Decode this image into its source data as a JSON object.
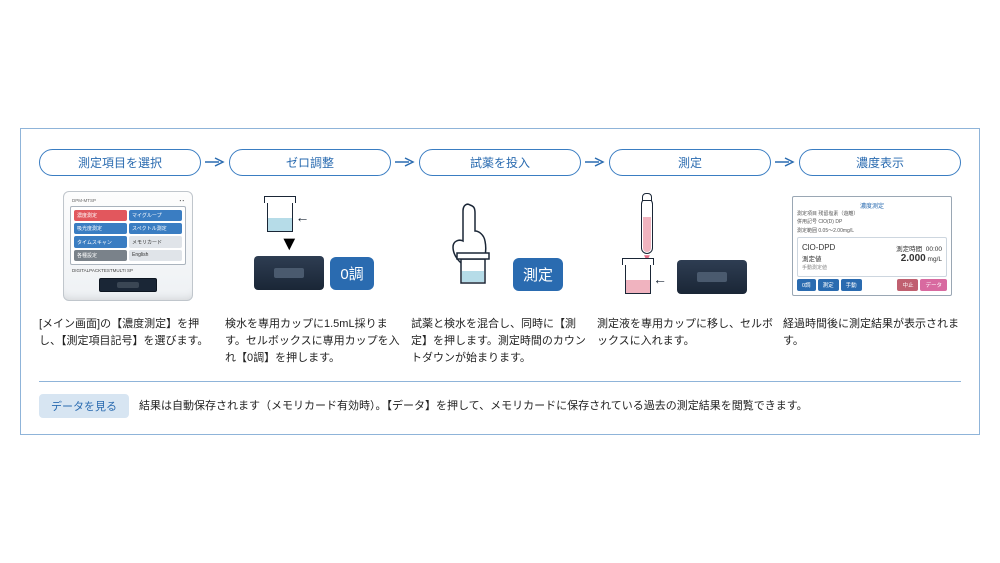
{
  "colors": {
    "border": "#8fb4d9",
    "primary": "#2a6bb0",
    "primary_border": "#3a7dc2",
    "text": "#222222",
    "badge_bg": "#d7e5f2",
    "water_blue": "#b6dce8",
    "water_pink": "#f0b3bf",
    "sensor_dark": "#1a2636"
  },
  "steps": {
    "s1": {
      "label": "測定項目を選択",
      "desc": "[メイン画面]の【濃度測定】を押し、【測定項目記号】を選びます。"
    },
    "s2": {
      "label": "ゼロ調整",
      "desc": "検水を専用カップに1.5mL採ります。セルボックスに専用カップを入れ【0調】を押します。"
    },
    "s3": {
      "label": "試薬を投入",
      "desc": "試薬と検水を混合し、同時に【測定】を押します。測定時間のカウントダウンが始まります。"
    },
    "s4": {
      "label": "測定",
      "desc": "測定液を専用カップに移し、セルボックスに入れます。"
    },
    "s5": {
      "label": "濃度表示",
      "desc": "経過時間後に測定結果が表示されます。"
    }
  },
  "device": {
    "brand": "DPM-MTSP",
    "subtitle": "DIGITALPACKTESTMULTI SP",
    "menu": [
      {
        "label": "濃度測定",
        "color": "#e2575d"
      },
      {
        "label": "マイグループ",
        "color": "#3a7dc2"
      },
      {
        "label": "吸光度測定",
        "color": "#3a7dc2"
      },
      {
        "label": "スペクトル測定",
        "color": "#3a7dc2"
      },
      {
        "label": "タイムスキャン",
        "color": "#3a7dc2"
      },
      {
        "label": "メモリカード",
        "color": "#e0e4e9",
        "text": "#333"
      },
      {
        "label": "各種設定",
        "color": "#7a828a"
      },
      {
        "label": "English",
        "color": "#e0e4e9",
        "text": "#333"
      }
    ]
  },
  "buttons": {
    "zero": "0調",
    "measure": "測定"
  },
  "result": {
    "title": "濃度測定",
    "info1": "測定項目 残留塩素（遊離）",
    "info2": "併用記号 ClO(D) DP",
    "info3": "測定範囲 0.05～2.00mg/L",
    "code": "ClO-DPD",
    "time_label": "測定時間",
    "time_value": "00:00",
    "value_label": "測定値",
    "value": "2.000",
    "unit": "mg/L",
    "note": "手動測定値",
    "btns": [
      {
        "label": "0調",
        "bg": "#2a6bb0"
      },
      {
        "label": "測定",
        "bg": "#2a6bb0"
      },
      {
        "label": "手動",
        "bg": "#2a6bb0"
      },
      {
        "label": "中止",
        "bg": "#c06070"
      },
      {
        "label": "データ",
        "bg": "#d86aa0"
      }
    ]
  },
  "bottom": {
    "badge": "データを見る",
    "text": "結果は自動保存されます（メモリカード有効時）。【データ】を押して、メモリカードに保存されている過去の測定結果を閲覧できます。"
  }
}
